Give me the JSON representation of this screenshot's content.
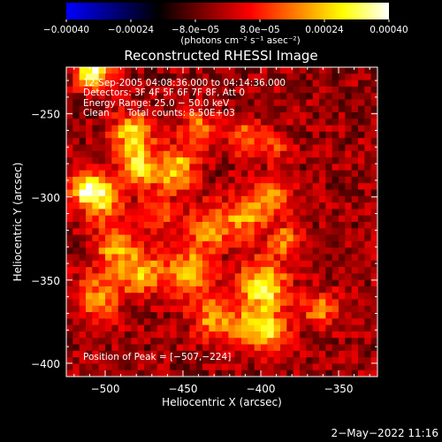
{
  "chart_data": {
    "type": "heatmap",
    "title": "Reconstructed RHESSI Image",
    "xlabel": "Heliocentric X (arcsec)",
    "ylabel": "Heliocentric Y (arcsec)",
    "xlim": [
      -525,
      -325
    ],
    "ylim": [
      -408,
      -222
    ],
    "x_ticks": [
      -500,
      -450,
      -400,
      -350
    ],
    "x_tick_labels": [
      "−500",
      "−450",
      "−400",
      "−350"
    ],
    "y_ticks": [
      -250,
      -300,
      -350,
      -400
    ],
    "y_tick_labels": [
      "−250",
      "−300",
      "−350",
      "−400"
    ],
    "colorbar": {
      "range": [
        -0.0004,
        0.0004
      ],
      "ticks": [
        -0.0004,
        -0.00024,
        -8e-05,
        8e-05,
        0.00024,
        0.0004
      ],
      "tick_labels": [
        "−0.00040",
        "−0.00024",
        "−8.0e−05",
        "8.0e−05",
        "0.00024",
        "0.00040"
      ],
      "unit_label": "(photons cm⁻² s⁻¹ asec⁻²)",
      "colormap": [
        "#0000ff",
        "#000080",
        "#000000",
        "#800000",
        "#ff0000",
        "#ff8000",
        "#ffff00",
        "#ffffff"
      ]
    },
    "annotations": [
      "12-Sep-2005 04:08:36.000 to 04:14:36.000",
      "Detectors: 3F 4F 5F 6F 7F 8F, Att 0",
      "Energy Range: 25.0 − 50.0 keV",
      "Clean      Total counts: 8.50E+03"
    ],
    "peak_label": "Position of Peak = [−507,−224]",
    "peak": [
      -507,
      -224
    ],
    "grid": {
      "nx": 48,
      "ny": 48,
      "seed": 20050912,
      "background": -4e-05,
      "blobs": [
        {
          "x": -398,
          "y": -353,
          "amp": 0.00038,
          "s": 10
        },
        {
          "x": -396,
          "y": -380,
          "amp": 0.0003,
          "s": 9
        },
        {
          "x": -483,
          "y": -262,
          "amp": 0.0003,
          "s": 9
        },
        {
          "x": -507,
          "y": -224,
          "amp": 0.0004,
          "s": 8
        },
        {
          "x": -478,
          "y": -282,
          "amp": 0.00028,
          "s": 8
        },
        {
          "x": -455,
          "y": -283,
          "amp": 0.0003,
          "s": 9
        },
        {
          "x": -503,
          "y": -300,
          "amp": 0.0003,
          "s": 9
        },
        {
          "x": -512,
          "y": -295,
          "amp": 0.00028,
          "s": 7
        },
        {
          "x": -477,
          "y": -345,
          "amp": 0.00026,
          "s": 10
        },
        {
          "x": -445,
          "y": -345,
          "amp": 0.00028,
          "s": 10
        },
        {
          "x": -432,
          "y": -318,
          "amp": 0.00025,
          "s": 9
        },
        {
          "x": -410,
          "y": -312,
          "amp": 0.00022,
          "s": 9
        },
        {
          "x": -392,
          "y": -300,
          "amp": 0.00024,
          "s": 8
        },
        {
          "x": -385,
          "y": -326,
          "amp": 0.0002,
          "s": 7
        },
        {
          "x": -505,
          "y": -360,
          "amp": 0.00022,
          "s": 10
        },
        {
          "x": -495,
          "y": -330,
          "amp": 0.00022,
          "s": 9
        },
        {
          "x": -440,
          "y": -258,
          "amp": 0.0002,
          "s": 8
        },
        {
          "x": -411,
          "y": -264,
          "amp": 0.00018,
          "s": 8
        },
        {
          "x": -432,
          "y": -372,
          "amp": 0.00022,
          "s": 9
        },
        {
          "x": -362,
          "y": -368,
          "amp": 0.0002,
          "s": 8
        },
        {
          "x": -412,
          "y": -378,
          "amp": 0.00018,
          "s": 8
        },
        {
          "x": -467,
          "y": -310,
          "amp": 0.00016,
          "s": 9
        },
        {
          "x": -390,
          "y": -270,
          "amp": 0.00012,
          "s": 7
        }
      ]
    }
  },
  "footer": {
    "timestamp": "2−May−2022 11:16"
  }
}
